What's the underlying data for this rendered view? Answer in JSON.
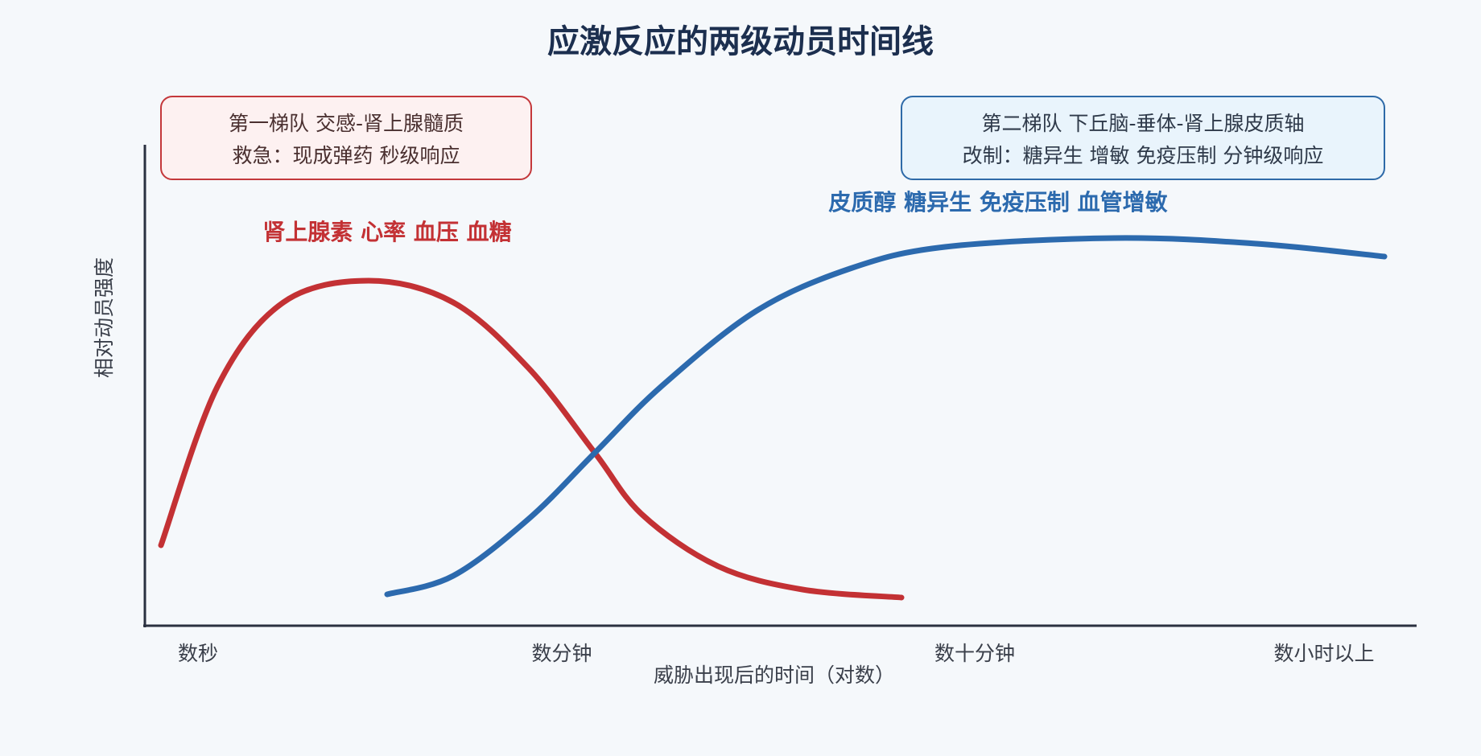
{
  "title": "应激反应的两级动员时间线",
  "phases": [
    {
      "title": "第一梯队 交感-肾上腺髓质",
      "subtitle": "救急：现成弹药 秒级响应",
      "markers": "肾上腺素 心率 血压 血糖"
    },
    {
      "title": "第二梯队 下丘脑-垂体-肾上腺皮质轴",
      "subtitle": "改制：糖异生 增敏 免疫压制 分钟级响应",
      "markers": "皮质醇 糖异生 免疫压制 血管增敏"
    }
  ],
  "x_axis": {
    "title": "威胁出现后的时间（对数）",
    "ticks": [
      "数秒",
      "数分钟",
      "数十分钟",
      "数小时以上"
    ]
  },
  "y_axis": {
    "title": "相对动员强度"
  }
}
